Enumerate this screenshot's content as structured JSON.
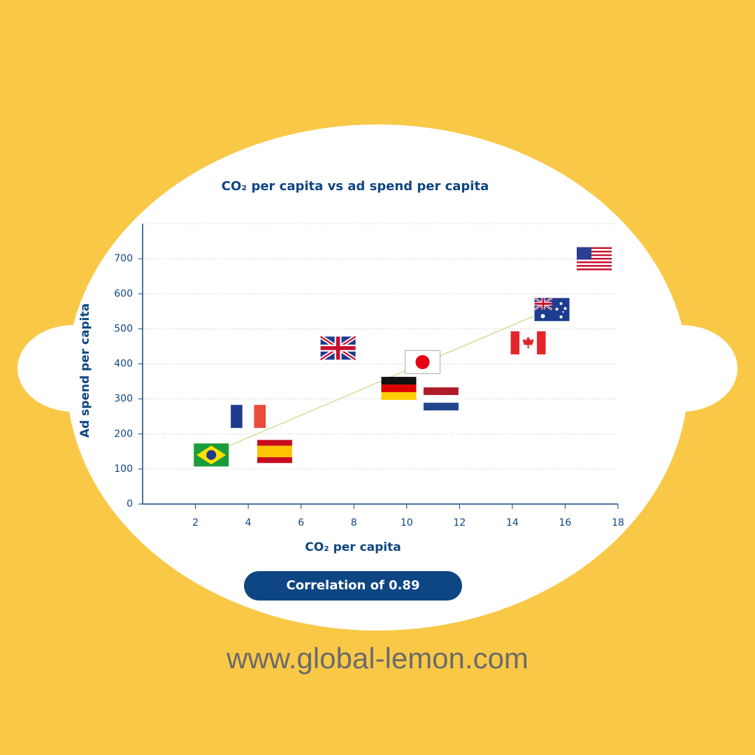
{
  "chart_data": {
    "type": "scatter",
    "title": "CO₂ per capita vs ad spend per capita",
    "x_label": "CO₂ per capita",
    "y_label": "Ad spend per capita",
    "x": [
      2.6,
      4.0,
      5.0,
      7.4,
      9.7,
      10.6,
      11.3,
      14.6,
      15.5,
      17.1
    ],
    "values": [
      140,
      250,
      150,
      445,
      330,
      405,
      300,
      460,
      555,
      700
    ],
    "trend": {
      "x": [
        3.3,
        14.8
      ],
      "y": [
        167,
        536
      ],
      "color": "#d6dc9a"
    },
    "xlim": [
      0,
      18
    ],
    "xticks": [
      2,
      4,
      6,
      8,
      10,
      12,
      14,
      16,
      18
    ],
    "ylim": [
      0,
      800
    ],
    "yticks": [
      0,
      100,
      200,
      300,
      400,
      500,
      600,
      700
    ],
    "grid": true,
    "color": "#0d4682",
    "annotation": "Correlation of 0.89"
  },
  "website": "www.global-lemon.com"
}
